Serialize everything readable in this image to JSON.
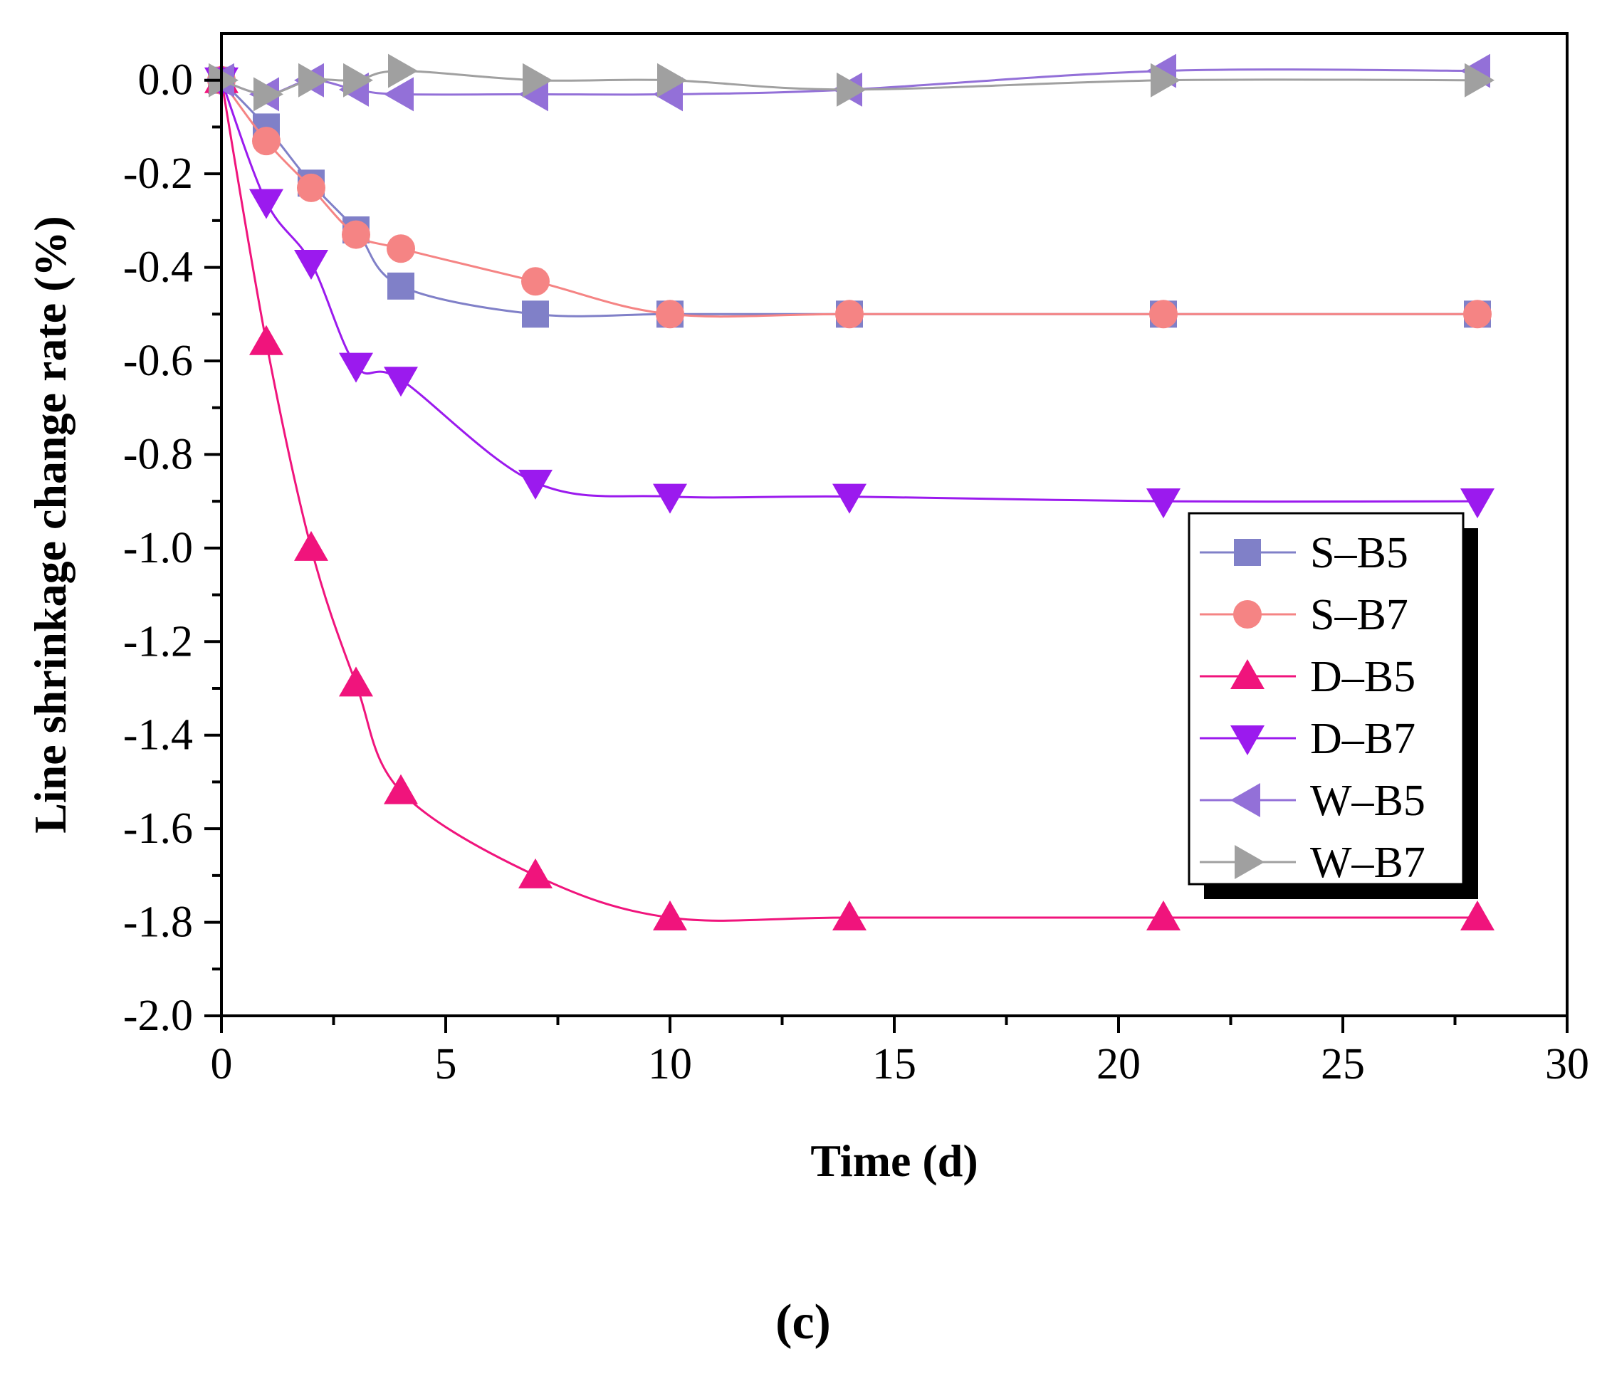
{
  "chart_data": {
    "type": "line",
    "title": "",
    "xlabel": "Time (d)",
    "ylabel": "Line shrinkage change rate (%)",
    "xlim": [
      0,
      30
    ],
    "ylim": [
      -2.0,
      0.1
    ],
    "xticks": [
      0,
      5,
      10,
      15,
      20,
      25,
      30
    ],
    "xtick_labels": [
      "0",
      "5",
      "10",
      "15",
      "20",
      "25",
      "30"
    ],
    "yticks": [
      0.0,
      -0.2,
      -0.4,
      -0.6,
      -0.8,
      -1.0,
      -1.2,
      -1.4,
      -1.6,
      -1.8,
      -2.0
    ],
    "ytick_labels": [
      "0.0",
      "-0.2",
      "-0.4",
      "-0.6",
      "-0.8",
      "-1.0",
      "-1.2",
      "-1.4",
      "-1.6",
      "-1.8",
      "-2.0"
    ],
    "grid": false,
    "legend_position": "right",
    "panel_label": "(c)",
    "series": [
      {
        "name": "S–B5",
        "marker": "square",
        "color": "#8080c8",
        "x": [
          0,
          1,
          2,
          3,
          4,
          7,
          10,
          14,
          21,
          28
        ],
        "y": [
          0.0,
          -0.1,
          -0.22,
          -0.32,
          -0.44,
          -0.5,
          -0.5,
          -0.5,
          -0.5,
          -0.5
        ]
      },
      {
        "name": "S–B7",
        "marker": "circle",
        "color": "#f58484",
        "x": [
          0,
          1,
          2,
          3,
          4,
          7,
          10,
          14,
          21,
          28
        ],
        "y": [
          0.0,
          -0.13,
          -0.23,
          -0.33,
          -0.36,
          -0.43,
          -0.5,
          -0.5,
          -0.5,
          -0.5
        ]
      },
      {
        "name": "D–B5",
        "marker": "triangle-up",
        "color": "#f0147c",
        "x": [
          0,
          1,
          2,
          3,
          4,
          7,
          10,
          14,
          21,
          28
        ],
        "y": [
          0.0,
          -0.56,
          -1.0,
          -1.29,
          -1.52,
          -1.7,
          -1.79,
          -1.79,
          -1.79,
          -1.79
        ]
      },
      {
        "name": "D–B7",
        "marker": "triangle-down",
        "color": "#9b1aee",
        "x": [
          0,
          1,
          2,
          3,
          4,
          7,
          10,
          14,
          21,
          28
        ],
        "y": [
          0.0,
          -0.26,
          -0.39,
          -0.61,
          -0.64,
          -0.86,
          -0.89,
          -0.89,
          -0.9,
          -0.9
        ]
      },
      {
        "name": "W–B5",
        "marker": "triangle-left",
        "color": "#9370d8",
        "x": [
          0,
          1,
          2,
          3,
          4,
          7,
          10,
          14,
          21,
          28
        ],
        "y": [
          0.0,
          -0.03,
          0.0,
          -0.02,
          -0.03,
          -0.03,
          -0.03,
          -0.02,
          0.02,
          0.02
        ]
      },
      {
        "name": "W–B7",
        "marker": "triangle-right",
        "color": "#a0a0a0",
        "x": [
          0,
          1,
          2,
          3,
          4,
          7,
          10,
          14,
          21,
          28
        ],
        "y": [
          0.0,
          -0.03,
          0.0,
          0.0,
          0.02,
          0.0,
          0.0,
          -0.02,
          0.0,
          0.0
        ]
      }
    ]
  }
}
